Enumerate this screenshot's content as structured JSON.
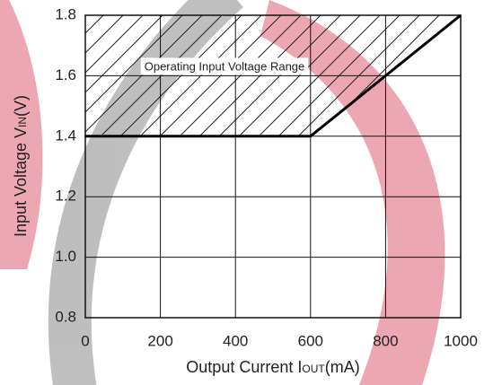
{
  "chart_data": {
    "type": "line",
    "annotation": "Operating Input Voltage Range",
    "xlabel": [
      "Output Current I",
      "OUT",
      "(mA)"
    ],
    "ylabel": [
      "Input Voltage V",
      "IN",
      "(V)"
    ],
    "x": [
      0,
      600,
      1000
    ],
    "series": [
      {
        "color": "#000000",
        "values": [
          1.4,
          1.4,
          1.8
        ]
      }
    ],
    "xlim": [
      0,
      1000
    ],
    "xticks": [
      0,
      200,
      400,
      600,
      800,
      1000
    ],
    "ylim": [
      0.8,
      1.8
    ],
    "yticks": [
      0.8,
      {
        "value": 1,
        "label": "1.0"
      },
      1.2,
      1.4,
      1.6,
      1.8
    ],
    "grid": true,
    "hatch_above": true
  }
}
